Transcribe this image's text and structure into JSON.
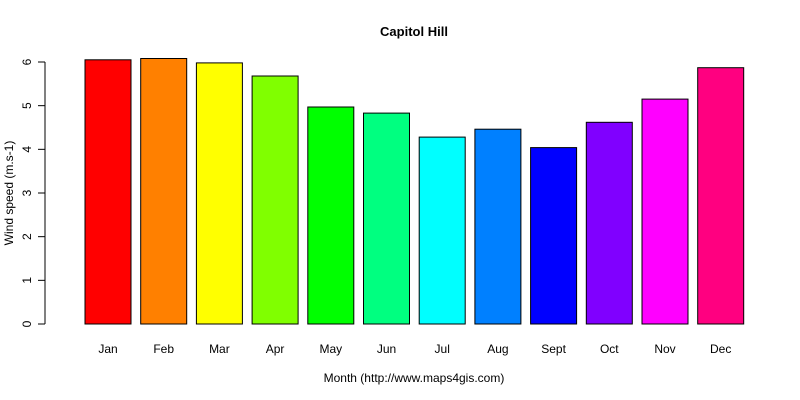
{
  "chart_data": {
    "type": "bar",
    "title": "Capitol Hill",
    "xlabel": "Month (http://www.maps4gis.com)",
    "ylabel": "Wind speed (m.s-1)",
    "categories": [
      "Jan",
      "Feb",
      "Mar",
      "Apr",
      "May",
      "Jun",
      "Jul",
      "Aug",
      "Sept",
      "Oct",
      "Nov",
      "Dec"
    ],
    "values": [
      6.05,
      6.08,
      5.98,
      5.68,
      4.97,
      4.83,
      4.28,
      4.46,
      4.04,
      4.62,
      5.15,
      5.87
    ],
    "colors": [
      "#FF0000",
      "#FF8000",
      "#FFFF00",
      "#80FF00",
      "#00FF00",
      "#00FF80",
      "#00FFFF",
      "#0080FF",
      "#0000FF",
      "#8000FF",
      "#FF00FF",
      "#FF0080"
    ],
    "y_ticks": [
      0,
      1,
      2,
      3,
      4,
      5,
      6
    ],
    "ylim": [
      0,
      6.2
    ],
    "grid": false,
    "legend": false
  }
}
